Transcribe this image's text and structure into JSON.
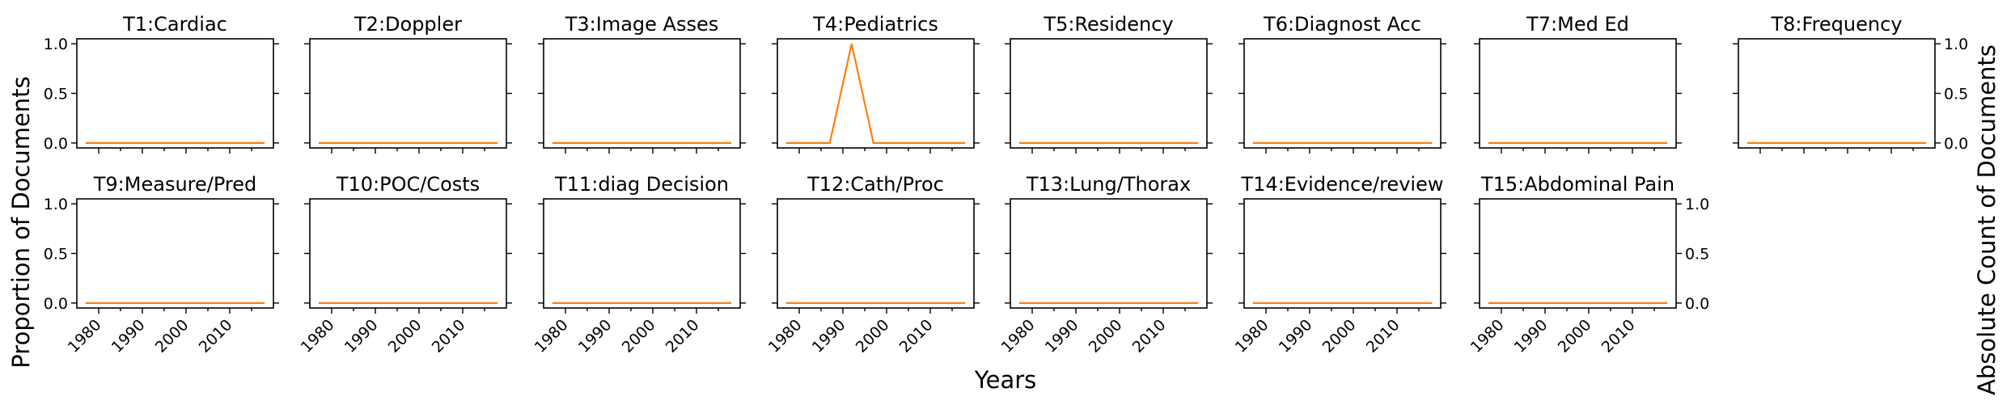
{
  "colors": {
    "line": "#ff7f0e",
    "axes": "#000000"
  },
  "figure": {
    "left_ylabel": "Proportion of Documents",
    "right_ylabel": "Absolute Count of Documents",
    "xlabel": "Years"
  },
  "chart_data": {
    "type": "line",
    "xlim": [
      1975,
      2020
    ],
    "ylim": [
      -0.05,
      1.05
    ],
    "x_ticks": [
      1980,
      1990,
      2000,
      2010
    ],
    "y_ticks": [
      0.0,
      0.5,
      1.0
    ],
    "y_tick_labels": [
      "0.0",
      "0.5",
      "1.0"
    ],
    "panels": [
      {
        "title": "T1:Cardiac",
        "x": [
          1977,
          2018
        ],
        "y": [
          0,
          0
        ]
      },
      {
        "title": "T2:Doppler",
        "x": [
          1977,
          2018
        ],
        "y": [
          0,
          0
        ]
      },
      {
        "title": "T3:Image Asses",
        "x": [
          1977,
          2018
        ],
        "y": [
          0,
          0
        ]
      },
      {
        "title": "T4:Pediatrics",
        "x": [
          1977,
          1987,
          1992,
          1997,
          2018
        ],
        "y": [
          0,
          0,
          1,
          0,
          0
        ]
      },
      {
        "title": "T5:Residency",
        "x": [
          1977,
          2018
        ],
        "y": [
          0,
          0
        ]
      },
      {
        "title": "T6:Diagnost Acc",
        "x": [
          1977,
          2018
        ],
        "y": [
          0,
          0
        ]
      },
      {
        "title": "T7:Med Ed",
        "x": [
          1977,
          2018
        ],
        "y": [
          0,
          0
        ]
      },
      {
        "title": "T8:Frequency",
        "x": [
          1977,
          2018
        ],
        "y": [
          0,
          0
        ]
      },
      {
        "title": "T9:Measure/Pred",
        "x": [
          1977,
          2018
        ],
        "y": [
          0,
          0
        ]
      },
      {
        "title": "T10:POC/Costs",
        "x": [
          1977,
          2018
        ],
        "y": [
          0,
          0
        ]
      },
      {
        "title": "T11:diag Decision",
        "x": [
          1977,
          2018
        ],
        "y": [
          0,
          0
        ]
      },
      {
        "title": "T12:Cath/Proc",
        "x": [
          1977,
          2018
        ],
        "y": [
          0,
          0
        ]
      },
      {
        "title": "T13:Lung/Thorax",
        "x": [
          1977,
          2018
        ],
        "y": [
          0,
          0
        ]
      },
      {
        "title": "T14:Evidence/review",
        "x": [
          1977,
          2018
        ],
        "y": [
          0,
          0
        ]
      },
      {
        "title": "T15:Abdominal Pain",
        "x": [
          1977,
          2018
        ],
        "y": [
          0,
          0
        ]
      }
    ]
  }
}
